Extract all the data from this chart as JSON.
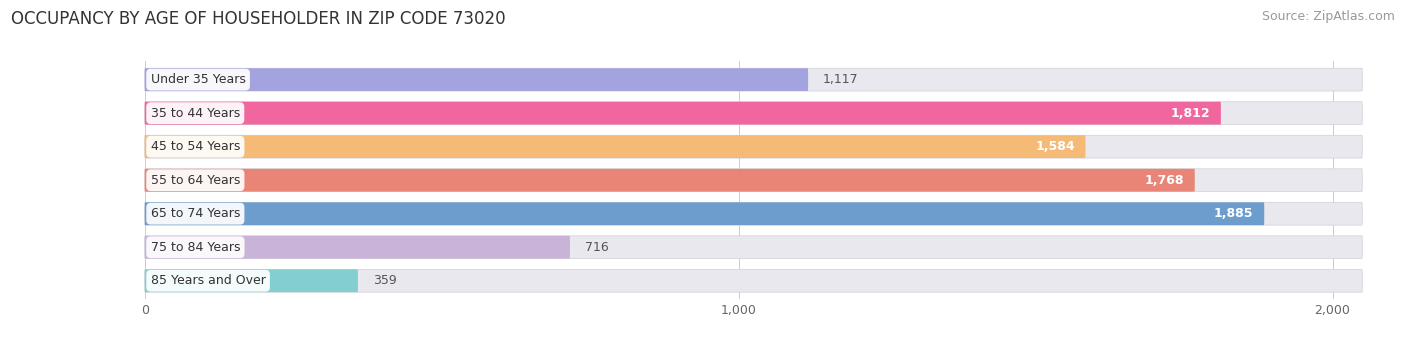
{
  "title": "OCCUPANCY BY AGE OF HOUSEHOLDER IN ZIP CODE 73020",
  "source": "Source: ZipAtlas.com",
  "categories": [
    "Under 35 Years",
    "35 to 44 Years",
    "45 to 54 Years",
    "55 to 64 Years",
    "65 to 74 Years",
    "75 to 84 Years",
    "85 Years and Over"
  ],
  "values": [
    1117,
    1812,
    1584,
    1768,
    1885,
    716,
    359
  ],
  "bar_colors": [
    "#a0a0e0",
    "#f0609a",
    "#f5b870",
    "#e88070",
    "#6699cc",
    "#c8b0d8",
    "#7ecece"
  ],
  "value_inside": [
    false,
    true,
    true,
    true,
    true,
    false,
    false
  ],
  "xlim_min": -220,
  "xlim_max": 2100,
  "xticks": [
    0,
    1000,
    2000
  ],
  "xticklabels": [
    "0",
    "1,000",
    "2,000"
  ],
  "bg_bar_color": "#e8e8ee",
  "bg_bar_max": 2050,
  "title_fontsize": 12,
  "source_fontsize": 9,
  "tick_fontsize": 9,
  "label_fontsize": 9,
  "value_fontsize": 9,
  "background_color": "#ffffff"
}
